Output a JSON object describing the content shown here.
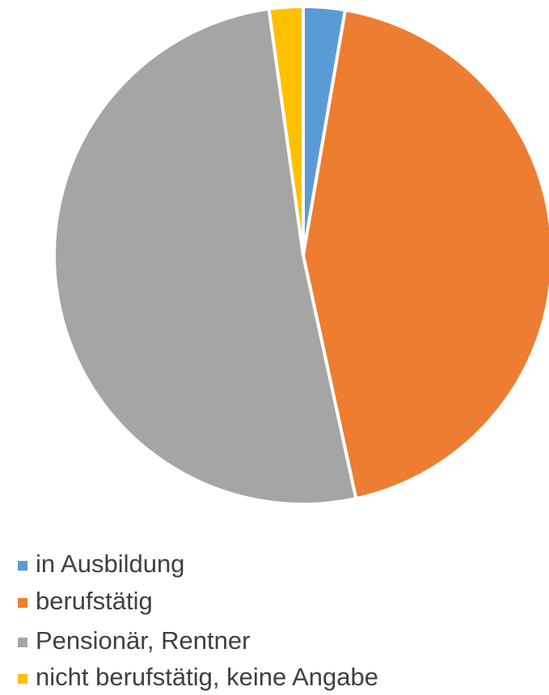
{
  "chart_data": {
    "type": "pie",
    "categories": [
      "in Ausbildung",
      "berufstätig",
      "Pensionär, Rentner",
      "nicht berufstätig, keine Angabe"
    ],
    "values": [
      2.7,
      43.9,
      51.2,
      2.2
    ],
    "colors": [
      "#5b9bd5",
      "#ed7d31",
      "#a5a5a5",
      "#ffc000"
    ],
    "legend": "bottom"
  }
}
